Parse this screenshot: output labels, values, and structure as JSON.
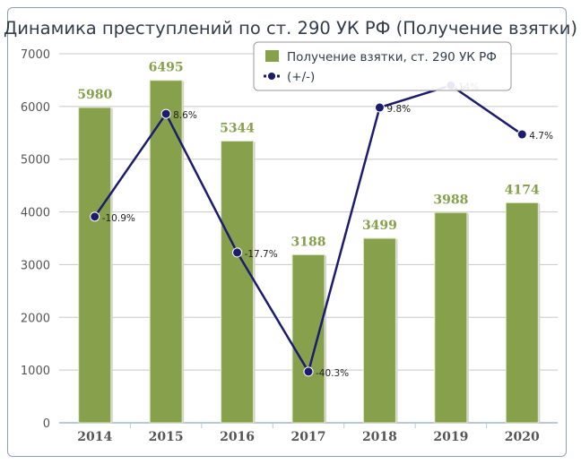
{
  "chart_data": {
    "type": "bar",
    "title": "Динамика преступлений по ст. 290 УК РФ (Получение взятки)",
    "categories": [
      "2014",
      "2015",
      "2016",
      "2017",
      "2018",
      "2019",
      "2020"
    ],
    "series": [
      {
        "name": "Получение взятки, ст. 290 УК РФ",
        "type": "bar",
        "values": [
          5980,
          6495,
          5344,
          3188,
          3499,
          3988,
          4174
        ],
        "color": "#87a04c"
      },
      {
        "name": "(+/-)",
        "type": "line",
        "axis": "secondary",
        "values": [
          -10.9,
          8.6,
          -17.7,
          -40.3,
          9.8,
          14,
          4.7
        ],
        "labels": [
          "-10.9%",
          "8.6%",
          "-17.7%",
          "-40.3%",
          "9.8%",
          "14%",
          "4.7%"
        ],
        "color": "#1c1c6e"
      }
    ],
    "ylim": [
      0,
      7000
    ],
    "yticks": [
      0,
      1000,
      2000,
      3000,
      4000,
      5000,
      6000,
      7000
    ],
    "y2lim": [
      -50,
      20
    ],
    "y2_visible": false,
    "grid": true,
    "legend": "top-right"
  }
}
